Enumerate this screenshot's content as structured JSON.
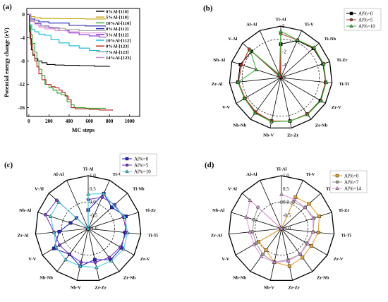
{
  "chart_data": [
    {
      "panel": "(a)",
      "type": "line",
      "xlabel": "MC steps",
      "ylabel": "Potential energy change (eV)",
      "xlim": [
        -20,
        1100
      ],
      "ylim": [
        -17.5,
        1
      ],
      "xticks": [
        0,
        200,
        400,
        600,
        800,
        1000
      ],
      "yticks": [
        0,
        -4,
        -8,
        -12,
        -16
      ],
      "legend_position": "top-right",
      "series": [
        {
          "name": "0%Al-[110]",
          "color": "#000000",
          "points": [
            [
              0,
              0
            ],
            [
              5,
              -2
            ],
            [
              12,
              -4.2
            ],
            [
              25,
              -6.1
            ],
            [
              40,
              -7.0
            ],
            [
              60,
              -7.6
            ],
            [
              90,
              -8.0
            ],
            [
              130,
              -8.3
            ],
            [
              180,
              -8.6
            ],
            [
              260,
              -8.7
            ],
            [
              350,
              -8.75
            ],
            [
              500,
              -8.8
            ],
            [
              650,
              -8.9
            ],
            [
              800,
              -9.0
            ]
          ]
        },
        {
          "name": "5%Al-[110]",
          "color": "#c8a000",
          "points": [
            [
              0,
              0
            ],
            [
              20,
              -0.4
            ],
            [
              60,
              -0.6
            ],
            [
              120,
              -0.7
            ],
            [
              300,
              -0.75
            ],
            [
              560,
              -0.8
            ],
            [
              760,
              -0.85
            ]
          ]
        },
        {
          "name": "10%Al-[110]",
          "color": "#2aa82a",
          "points": [
            [
              0,
              0
            ],
            [
              10,
              -2.0
            ],
            [
              20,
              -3.5
            ],
            [
              35,
              -5.0
            ],
            [
              60,
              -6.5
            ],
            [
              80,
              -8.0
            ],
            [
              100,
              -9.4
            ],
            [
              130,
              -10.5
            ],
            [
              160,
              -12.0
            ],
            [
              200,
              -12.6
            ],
            [
              240,
              -13.0
            ],
            [
              280,
              -13.5
            ],
            [
              320,
              -13.8
            ],
            [
              360,
              -13.9
            ],
            [
              380,
              -15.0
            ],
            [
              420,
              -15.5
            ],
            [
              450,
              -16.0
            ],
            [
              560,
              -16.1
            ],
            [
              760,
              -16.2
            ]
          ]
        },
        {
          "name": "0%Al-[112]",
          "color": "#1f1fb4",
          "points": [
            [
              0,
              0
            ],
            [
              20,
              -0.8
            ],
            [
              60,
              -1.0
            ],
            [
              100,
              -1.3
            ],
            [
              200,
              -1.5
            ],
            [
              400,
              -1.9
            ],
            [
              560,
              -2.0
            ],
            [
              760,
              -2.1
            ]
          ]
        },
        {
          "name": "5%Al-[112]",
          "color": "#8a2be2",
          "points": [
            [
              0,
              0
            ],
            [
              20,
              -1.2
            ],
            [
              60,
              -1.6
            ],
            [
              120,
              -2.0
            ],
            [
              200,
              -2.3
            ],
            [
              300,
              -2.8
            ],
            [
              400,
              -3.2
            ],
            [
              500,
              -3.5
            ],
            [
              600,
              -3.7
            ],
            [
              700,
              -3.9
            ],
            [
              760,
              -4.0
            ]
          ]
        },
        {
          "name": "10%Al-[112]",
          "color": "#00bcd4",
          "points": [
            [
              0,
              0
            ],
            [
              10,
              -1.8
            ],
            [
              30,
              -2.6
            ],
            [
              60,
              -3.0
            ],
            [
              100,
              -3.4
            ],
            [
              160,
              -3.6
            ],
            [
              220,
              -4.3
            ],
            [
              300,
              -4.9
            ],
            [
              400,
              -5.4
            ],
            [
              500,
              -5.8
            ],
            [
              600,
              -6.2
            ],
            [
              700,
              -6.4
            ],
            [
              760,
              -6.5
            ]
          ]
        },
        {
          "name": "0%Al-[123]",
          "color": "#b41e1e",
          "points": [
            [
              0,
              0
            ],
            [
              6,
              -3.0
            ],
            [
              20,
              -5.2
            ],
            [
              40,
              -6.8
            ],
            [
              60,
              -8.0
            ],
            [
              80,
              -9.0
            ],
            [
              100,
              -10.2
            ],
            [
              130,
              -11.2
            ],
            [
              170,
              -12.0
            ],
            [
              220,
              -12.4
            ],
            [
              260,
              -12.6
            ],
            [
              300,
              -13.0
            ],
            [
              330,
              -13.4
            ],
            [
              360,
              -14.0
            ],
            [
              390,
              -14.6
            ],
            [
              420,
              -16.0
            ],
            [
              460,
              -16.2
            ],
            [
              600,
              -16.3
            ],
            [
              700,
              -16.4
            ],
            [
              830,
              -16.5
            ]
          ]
        },
        {
          "name": "7%Al-[123]",
          "color": "#a0a0a0",
          "points": [
            [
              0,
              0
            ],
            [
              20,
              -1.0
            ],
            [
              60,
              -1.4
            ],
            [
              100,
              -2.0
            ],
            [
              160,
              -2.2
            ],
            [
              240,
              -2.4
            ],
            [
              360,
              -2.6
            ],
            [
              500,
              -2.8
            ],
            [
              760,
              -2.9
            ]
          ]
        },
        {
          "name": "14%Al-[123]",
          "color": "#d98ad9",
          "points": [
            [
              0,
              0
            ],
            [
              20,
              -1.2
            ],
            [
              60,
              -1.8
            ],
            [
              100,
              -2.2
            ],
            [
              160,
              -2.5
            ],
            [
              260,
              -2.8
            ],
            [
              380,
              -3.0
            ],
            [
              500,
              -3.2
            ],
            [
              760,
              -3.3
            ]
          ]
        }
      ]
    },
    {
      "panel": "(b)",
      "type": "radar",
      "categories": [
        "Ti-Al",
        "Ti-V",
        "Ti-Nb",
        "Ti-Zr",
        "Ti-Ti",
        "Zr-V",
        "Zr-Nb",
        "Zr-Zr",
        "Nb-V",
        "Nb-Nb",
        "V-V",
        "Zr-Al",
        "Nb-Al",
        "V-Al",
        "Al-Al"
      ],
      "rlim": [
        -6,
        2
      ],
      "rticks": [
        2,
        -2,
        -4,
        -6
      ],
      "rtick_labels": [
        "2",
        "-2",
        "-4",
        "-6"
      ],
      "dashed_ring": 0,
      "legend_position": "top-right",
      "series": [
        {
          "name": "Al%=0",
          "color": "#000000",
          "marker": "square",
          "values": [
            -0.8,
            0.3,
            0.8,
            0.9,
            1.0,
            1.1,
            1.0,
            0.9,
            0.9,
            0.7,
            0.5,
            0.7,
            0.6,
            0.1,
            -5.5
          ]
        },
        {
          "name": "Al%=5",
          "color": "#c0392b",
          "marker": "circle",
          "values": [
            0.8,
            0.4,
            0.9,
            1.0,
            1.0,
            1.2,
            1.0,
            0.9,
            0.9,
            0.6,
            0.4,
            0.6,
            0.4,
            0.6,
            -5.8
          ]
        },
        {
          "name": "Al%=10",
          "color": "#3cb83c",
          "marker": "triangle",
          "values": [
            1.2,
            0.4,
            1.0,
            1.0,
            1.1,
            1.2,
            1.1,
            0.9,
            1.0,
            0.8,
            0.5,
            0.7,
            -2.0,
            0.4,
            -5.5
          ]
        }
      ]
    },
    {
      "panel": "(c)",
      "type": "radar",
      "categories": [
        "Ti-Al",
        "Ti-V",
        "Ti-Nb",
        "Ti-Zr",
        "Ti-Ti",
        "Zr-V",
        "Zr-Nb",
        "Zr-Zr",
        "Nb-V",
        "Nb-Nb",
        "V-V",
        "Zr-Al",
        "Nb-Al",
        "V-Al",
        "Al-Al"
      ],
      "rlim": [
        -1.0,
        1.0
      ],
      "rticks": [
        1.0,
        0.5,
        0.0,
        -0.5,
        -1.0
      ],
      "rtick_labels": [
        "1.0",
        "0.5",
        "0.0",
        "-0.5",
        "-1.0"
      ],
      "dashed_ring": 0,
      "legend_position": "top-right",
      "series": [
        {
          "name": "Al%=0",
          "color": "#2323c8",
          "marker": "square",
          "values": [
            -0.3,
            0.45,
            0.2,
            0.5,
            0.4,
            0.45,
            0.45,
            0.2,
            0.45,
            0.2,
            0.5,
            0.1,
            -0.3,
            -0.4,
            -1.0
          ]
        },
        {
          "name": "Al%=5",
          "color": "#7b3fcf",
          "marker": "circle",
          "values": [
            0.1,
            0.3,
            0.35,
            0.4,
            0.45,
            0.4,
            0.35,
            0.3,
            0.3,
            0.2,
            0.25,
            0.3,
            0.7,
            0.6,
            -1.0
          ]
        },
        {
          "name": "Al%=10",
          "color": "#4dd0e1",
          "marker": "triangle",
          "values": [
            0.3,
            0.45,
            0.3,
            0.45,
            0.5,
            0.55,
            0.5,
            0.5,
            0.45,
            0.45,
            0.4,
            0.3,
            0.5,
            0.5,
            -1.0
          ]
        }
      ]
    },
    {
      "panel": "(d)",
      "type": "radar",
      "categories": [
        "Ti-Al",
        "Ti-V",
        "Ti-Nb",
        "Ti-Zr",
        "Ti-Ti",
        "Zr-V",
        "Zr-Nb",
        "Zr-Zr",
        "Nb-V",
        "Nb-Nb",
        "V-V",
        "Zr-Al",
        "Nb-Al",
        "V-Al",
        "Al-Al"
      ],
      "rlim": [
        -1.0,
        1.0
      ],
      "rticks": [
        1.0,
        0.5,
        0.0,
        -0.5,
        -1.0
      ],
      "rtick_labels": [
        "1.0",
        "0.5",
        "0.0",
        "-0.5",
        "-1.0"
      ],
      "dashed_ring": 0,
      "legend_position": "top-right",
      "series": [
        {
          "name": "Al%=0",
          "color": "#e0a030",
          "marker": "square",
          "values": [
            -1.0,
            0.3,
            0.4,
            0.5,
            0.4,
            0.3,
            0.35,
            0.45,
            0.3,
            0.0,
            0.0,
            -1.0,
            -1.0,
            -1.0,
            -1.0
          ]
        },
        {
          "name": "Al%=7",
          "color": "#9e9e9e",
          "marker": "circle",
          "values": [
            0.0,
            0.1,
            0.2,
            0.3,
            0.2,
            0.1,
            0.2,
            0.2,
            0.3,
            0.2,
            0.1,
            0.1,
            0.1,
            0.2,
            -1.0
          ]
        },
        {
          "name": "Al%=14",
          "color": "#e39be3",
          "marker": "triangle",
          "values": [
            0.3,
            0.2,
            0.2,
            0.25,
            0.2,
            0.15,
            0.2,
            0.25,
            0.3,
            0.3,
            0.2,
            0.2,
            0.4,
            0.6,
            -1.0
          ]
        }
      ]
    }
  ]
}
